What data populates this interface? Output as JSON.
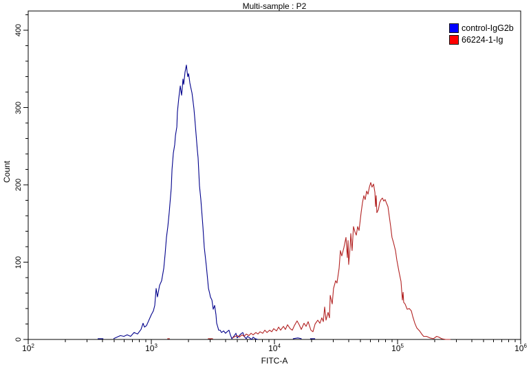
{
  "title": "Multi-sample : P2",
  "axes": {
    "x": {
      "label": "FITC-A",
      "scale": "log10",
      "min_exponent": 2,
      "max_exponent": 6,
      "major_tick_exponents": [
        2,
        3,
        4,
        5,
        6
      ],
      "major_tick_base": "10",
      "minor_ticks": "log decades 2-9"
    },
    "y": {
      "label": "Count",
      "min": 0,
      "max": 425,
      "major_ticks": [
        0,
        100,
        200,
        300,
        400
      ],
      "minor_step": 20
    }
  },
  "legend": {
    "position": "top-right",
    "items": [
      {
        "label": "control-IgG2b",
        "color": "#0000ff"
      },
      {
        "label": "66224-1-Ig",
        "color": "#ff0000"
      }
    ]
  },
  "colors": {
    "background": "#ffffff",
    "frame": "#000000",
    "text": "#000000",
    "control_curve": "#00008b",
    "antibody_curve": "#b22222"
  },
  "chart_data": {
    "type": "line",
    "subtype": "flow-cytometry-overlay-histogram",
    "title": "Multi-sample : P2",
    "xlabel": "FITC-A",
    "ylabel": "Count",
    "x_scale": "log10",
    "x_range_log10": [
      2,
      6
    ],
    "ylim": [
      0,
      425
    ],
    "grid": false,
    "legend_position": "top-right-inside",
    "series": [
      {
        "name": "control-IgG2b",
        "color": "#00008b",
        "peak": {
          "x_log10": 3.285,
          "x_value": 1900,
          "count": 355
        },
        "segments": [
          [
            [
              2.565,
              1
            ],
            [
              2.61,
              1
            ]
          ],
          [
            [
              2.693,
              1
            ],
            [
              2.721,
              3
            ],
            [
              2.749,
              5
            ],
            [
              2.777,
              4
            ],
            [
              2.804,
              6
            ],
            [
              2.832,
              4
            ],
            [
              2.86,
              9
            ],
            [
              2.888,
              7
            ],
            [
              2.916,
              13
            ],
            [
              2.933,
              21
            ],
            [
              2.944,
              16
            ],
            [
              2.961,
              18
            ],
            [
              2.972,
              22
            ],
            [
              2.989,
              28
            ],
            [
              3.0,
              32
            ],
            [
              3.017,
              37
            ],
            [
              3.028,
              44
            ],
            [
              3.039,
              66
            ],
            [
              3.05,
              55
            ],
            [
              3.067,
              70
            ],
            [
              3.084,
              76
            ],
            [
              3.101,
              92
            ],
            [
              3.112,
              110
            ],
            [
              3.123,
              132
            ],
            [
              3.134,
              146
            ],
            [
              3.145,
              164
            ],
            [
              3.151,
              175
            ],
            [
              3.162,
              196
            ],
            [
              3.168,
              220
            ],
            [
              3.179,
              241
            ],
            [
              3.19,
              252
            ],
            [
              3.196,
              264
            ],
            [
              3.207,
              275
            ],
            [
              3.212,
              294
            ],
            [
              3.223,
              312
            ],
            [
              3.235,
              328
            ],
            [
              3.246,
              316
            ],
            [
              3.251,
              324
            ],
            [
              3.257,
              337
            ],
            [
              3.263,
              330
            ],
            [
              3.274,
              346
            ],
            [
              3.285,
              355
            ],
            [
              3.291,
              346
            ],
            [
              3.296,
              340
            ],
            [
              3.302,
              344
            ],
            [
              3.307,
              339
            ],
            [
              3.313,
              332
            ],
            [
              3.318,
              328
            ],
            [
              3.33,
              319
            ],
            [
              3.335,
              313
            ],
            [
              3.346,
              299
            ],
            [
              3.352,
              288
            ],
            [
              3.363,
              266
            ],
            [
              3.374,
              245
            ],
            [
              3.38,
              235
            ],
            [
              3.391,
              199
            ],
            [
              3.402,
              181
            ],
            [
              3.413,
              159
            ],
            [
              3.419,
              146
            ],
            [
              3.43,
              119
            ],
            [
              3.447,
              95
            ],
            [
              3.464,
              66
            ],
            [
              3.475,
              59
            ],
            [
              3.48,
              55
            ],
            [
              3.492,
              51
            ],
            [
              3.503,
              39
            ],
            [
              3.514,
              44
            ],
            [
              3.525,
              32
            ],
            [
              3.531,
              21
            ],
            [
              3.542,
              15
            ],
            [
              3.547,
              12
            ],
            [
              3.559,
              12
            ],
            [
              3.57,
              9
            ],
            [
              3.587,
              11
            ],
            [
              3.603,
              8
            ],
            [
              3.615,
              10
            ],
            [
              3.631,
              12
            ],
            [
              3.642,
              6
            ],
            [
              3.654,
              1
            ],
            [
              3.67,
              4
            ],
            [
              3.687,
              8
            ],
            [
              3.698,
              2
            ],
            [
              3.715,
              5
            ],
            [
              3.726,
              7
            ],
            [
              3.743,
              9
            ],
            [
              3.754,
              4
            ],
            [
              3.771,
              1
            ],
            [
              3.782,
              4
            ],
            [
              3.799,
              2
            ],
            [
              3.816,
              0
            ],
            [
              3.827,
              3
            ],
            [
              3.844,
              1
            ],
            [
              3.866,
              0
            ]
          ],
          [
            [
              4.15,
              1
            ],
            [
              4.19,
              2
            ],
            [
              4.22,
              1
            ]
          ],
          [
            [
              4.29,
              1
            ],
            [
              4.33,
              1
            ]
          ]
        ]
      },
      {
        "name": "66224-1-Ig",
        "color": "#b22222",
        "peak": {
          "x_log10": 4.782,
          "x_value": 60500,
          "count": 203
        },
        "segments": [
          [
            [
              3.13,
              1
            ],
            [
              3.15,
              1
            ]
          ],
          [
            [
              3.46,
              1
            ],
            [
              3.5,
              1
            ]
          ],
          [
            [
              3.659,
              2
            ],
            [
              3.682,
              4
            ],
            [
              3.698,
              5
            ],
            [
              3.715,
              3
            ],
            [
              3.737,
              6
            ],
            [
              3.754,
              4
            ],
            [
              3.771,
              7
            ],
            [
              3.793,
              5
            ],
            [
              3.81,
              8
            ],
            [
              3.827,
              6
            ],
            [
              3.849,
              9
            ],
            [
              3.866,
              7
            ],
            [
              3.883,
              10
            ],
            [
              3.905,
              8
            ],
            [
              3.922,
              12
            ],
            [
              3.939,
              9
            ],
            [
              3.961,
              12
            ],
            [
              3.978,
              10
            ],
            [
              3.994,
              14
            ],
            [
              4.017,
              11
            ],
            [
              4.034,
              16
            ],
            [
              4.05,
              12
            ],
            [
              4.073,
              17
            ],
            [
              4.089,
              13
            ],
            [
              4.106,
              19
            ],
            [
              4.128,
              14
            ],
            [
              4.145,
              12
            ],
            [
              4.162,
              18
            ],
            [
              4.184,
              24
            ],
            [
              4.201,
              19
            ],
            [
              4.218,
              13
            ],
            [
              4.24,
              21
            ],
            [
              4.257,
              17
            ],
            [
              4.274,
              23
            ],
            [
              4.296,
              12
            ],
            [
              4.313,
              10
            ],
            [
              4.33,
              20
            ],
            [
              4.352,
              25
            ],
            [
              4.369,
              21
            ],
            [
              4.385,
              28
            ],
            [
              4.397,
              23
            ],
            [
              4.408,
              42
            ],
            [
              4.419,
              25
            ],
            [
              4.436,
              35
            ],
            [
              4.447,
              28
            ],
            [
              4.453,
              57
            ],
            [
              4.469,
              46
            ],
            [
              4.48,
              66
            ],
            [
              4.497,
              76
            ],
            [
              4.508,
              73
            ],
            [
              4.525,
              92
            ],
            [
              4.536,
              115
            ],
            [
              4.547,
              108
            ],
            [
              4.564,
              119
            ],
            [
              4.581,
              132
            ],
            [
              4.592,
              106
            ],
            [
              4.598,
              128
            ],
            [
              4.603,
              97
            ],
            [
              4.615,
              120
            ],
            [
              4.62,
              137
            ],
            [
              4.631,
              115
            ],
            [
              4.642,
              146
            ],
            [
              4.654,
              139
            ],
            [
              4.665,
              135
            ],
            [
              4.676,
              146
            ],
            [
              4.687,
              141
            ],
            [
              4.704,
              164
            ],
            [
              4.715,
              177
            ],
            [
              4.726,
              186
            ],
            [
              4.737,
              181
            ],
            [
              4.749,
              192
            ],
            [
              4.76,
              188
            ],
            [
              4.771,
              197
            ],
            [
              4.782,
              203
            ],
            [
              4.793,
              197
            ],
            [
              4.805,
              201
            ],
            [
              4.816,
              190
            ],
            [
              4.821,
              172
            ],
            [
              4.827,
              186
            ],
            [
              4.832,
              164
            ],
            [
              4.844,
              168
            ],
            [
              4.855,
              177
            ],
            [
              4.866,
              181
            ],
            [
              4.877,
              183
            ],
            [
              4.888,
              179
            ],
            [
              4.899,
              181
            ],
            [
              4.911,
              176
            ],
            [
              4.922,
              172
            ],
            [
              4.933,
              159
            ],
            [
              4.944,
              146
            ],
            [
              4.955,
              132
            ],
            [
              4.966,
              126
            ],
            [
              4.983,
              115
            ],
            [
              4.994,
              103
            ],
            [
              5.011,
              88
            ],
            [
              5.028,
              75
            ],
            [
              5.039,
              51
            ],
            [
              5.045,
              61
            ],
            [
              5.05,
              48
            ],
            [
              5.061,
              46
            ],
            [
              5.078,
              39
            ],
            [
              5.095,
              40
            ],
            [
              5.112,
              37
            ],
            [
              5.123,
              30
            ],
            [
              5.14,
              21
            ],
            [
              5.156,
              15
            ],
            [
              5.179,
              11
            ],
            [
              5.196,
              7
            ],
            [
              5.212,
              4
            ],
            [
              5.235,
              4
            ],
            [
              5.263,
              2
            ],
            [
              5.291,
              1
            ],
            [
              5.318,
              4
            ],
            [
              5.335,
              3
            ],
            [
              5.358,
              1
            ],
            [
              5.391,
              0
            ],
            [
              5.43,
              0
            ]
          ]
        ]
      }
    ]
  }
}
